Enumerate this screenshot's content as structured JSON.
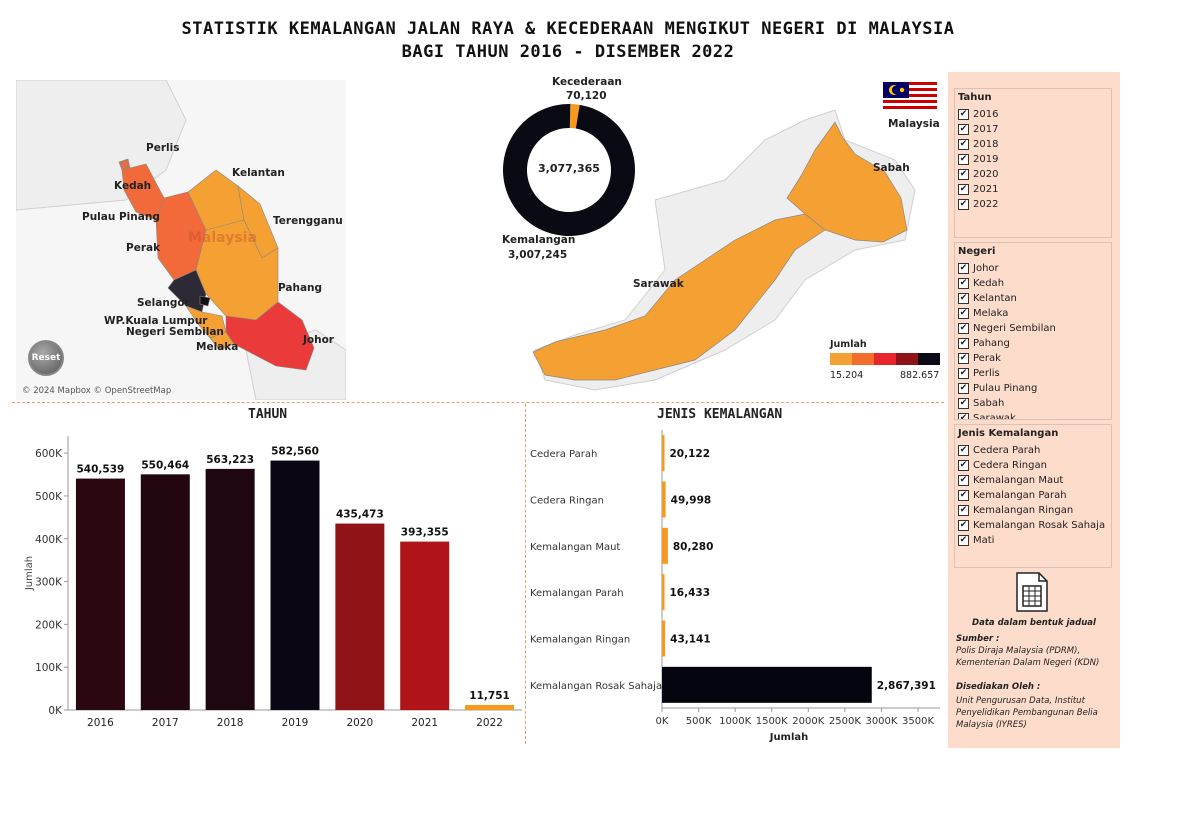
{
  "title": {
    "line1": "STATISTIK KEMALANGAN JALAN RAYA & KECEDERAAN MENGIKUT NEGERI DI MALAYSIA",
    "line2": "BAGI TAHUN 2016 - DISEMBER 2022"
  },
  "map": {
    "west_labels": [
      "Perlis",
      "Kedah",
      "Pulau Pinang",
      "Perak",
      "Kelantan",
      "Terengganu",
      "Pahang",
      "Selangor",
      "WP.Kuala Lumpur",
      "Negeri Sembilan",
      "Melaka",
      "Johor"
    ],
    "watermark": "Malaysia",
    "east_labels": [
      "Malaysia",
      "Sabah",
      "Sarawak"
    ],
    "attribution": "© 2024 Mapbox © OpenStreetMap",
    "reset_label": "Reset",
    "legend": {
      "title": "Jumlah",
      "min": "15.204",
      "max": "882.657",
      "colors": [
        "#f5a033",
        "#f26d2b",
        "#e8252c",
        "#8e1216",
        "#0d0a18"
      ]
    },
    "state_colors": {
      "default": "#f5a033",
      "perak": "#f26a3a",
      "kedah": "#f26a3a",
      "penang": "#f26a3a",
      "selangor": "#2e2a35",
      "johor": "#ea3a3a"
    }
  },
  "donut": {
    "center_total": "3,077,365",
    "top_label": "Kecederaan",
    "top_value": "70,120",
    "bottom_label": "Kemalangan",
    "bottom_value": "3,007,245",
    "colors": [
      "#f59a1e",
      "#0a0a14"
    ]
  },
  "chart_data": [
    {
      "type": "pie",
      "categories": [
        "Kecederaan",
        "Kemalangan"
      ],
      "values": [
        70120,
        3007245
      ],
      "total": 3077365
    },
    {
      "type": "bar",
      "title": "TAHUN",
      "categories": [
        "2016",
        "2017",
        "2018",
        "2019",
        "2020",
        "2021",
        "2022"
      ],
      "values": [
        540539,
        550464,
        563223,
        582560,
        435473,
        393355,
        11751
      ],
      "value_labels": [
        "540,539",
        "550,464",
        "563,223",
        "582,560",
        "435,473",
        "393,355",
        "11,751"
      ],
      "colors": [
        "#2b0810",
        "#220610",
        "#1f0711",
        "#0a0614",
        "#901417",
        "#b01419",
        "#f59a1e"
      ],
      "ylabel": "Jumlah",
      "ylim": [
        0,
        640000
      ],
      "yticks": [
        0,
        100000,
        200000,
        300000,
        400000,
        500000,
        600000
      ],
      "ytick_labels": [
        "0K",
        "100K",
        "200K",
        "300K",
        "400K",
        "500K",
        "600K"
      ]
    },
    {
      "type": "bar",
      "orientation": "horizontal",
      "title": "JENIS KEMALANGAN",
      "categories": [
        "Cedera Parah",
        "Cedera Ringan",
        "Kemalangan Maut",
        "Kemalangan Parah",
        "Kemalangan Ringan",
        "Kemalangan Rosak Sahaja"
      ],
      "values": [
        20122,
        49998,
        80280,
        16433,
        43141,
        2867391
      ],
      "value_labels": [
        "20,122",
        "49,998",
        "80,280",
        "16,433",
        "43,141",
        "2,867,391"
      ],
      "colors": [
        "#f59a1e",
        "#f59a1e",
        "#f59a1e",
        "#f59a1e",
        "#f59a1e",
        "#050510"
      ],
      "xlabel": "Jumlah",
      "xlim": [
        0,
        3800000
      ],
      "xticks": [
        0,
        500000,
        1000000,
        1500000,
        2000000,
        2500000,
        3000000,
        3500000
      ],
      "xtick_labels": [
        "0K",
        "500K",
        "1000K",
        "1500K",
        "2000K",
        "2500K",
        "3000K",
        "3500K"
      ]
    }
  ],
  "filters": [
    {
      "title": "Tahun",
      "items": [
        "2016",
        "2017",
        "2018",
        "2019",
        "2020",
        "2021",
        "2022"
      ]
    },
    {
      "title": "Negeri",
      "items": [
        "Johor",
        "Kedah",
        "Kelantan",
        "Melaka",
        "Negeri Sembilan",
        "Pahang",
        "Perak",
        "Perlis",
        "Pulau Pinang",
        "Sabah",
        "Sarawak"
      ]
    },
    {
      "title": "Jenis Kemalangan",
      "items": [
        "Cedera Parah",
        "Cedera Ringan",
        "Kemalangan Maut",
        "Kemalangan Parah",
        "Kemalangan Ringan",
        "Kemalangan Rosak Sahaja",
        "Mati"
      ]
    }
  ],
  "sidebar": {
    "table_icon": "spreadsheet-icon",
    "table_label": "Data dalam bentuk jadual",
    "source_title": "Sumber :",
    "source_lines": [
      "Polis Diraja Malaysia (PDRM),",
      "Kementerian Dalam Negeri (KDN)"
    ],
    "prepared_title": "Disediakan Oleh :",
    "prepared_lines": [
      "Unit Pengurusan Data, Institut",
      "Penyelidikan Pembangunan Belia",
      "Malaysia (IYRES)"
    ],
    "check_mark": "✔"
  }
}
